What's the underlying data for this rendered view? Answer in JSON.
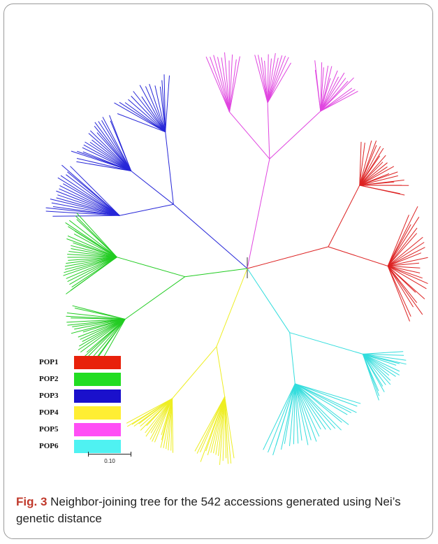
{
  "figure": {
    "caption_label": "Fig. 3",
    "caption_text": " Neighbor-joining tree for the 542 accessions generated using Nei’s genetic distance"
  },
  "legend": {
    "items": [
      {
        "label": "POP1",
        "color": "#e8210b"
      },
      {
        "label": "POP2",
        "color": "#22dd22"
      },
      {
        "label": "POP3",
        "color": "#1a10cc"
      },
      {
        "label": "POP4",
        "color": "#ffee33"
      },
      {
        "label": "POP5",
        "color": "#ff4ef5"
      },
      {
        "label": "POP6",
        "color": "#4ff2f2"
      }
    ]
  },
  "scale_bar": {
    "label": "0.10"
  },
  "tree": {
    "root_color": "#333333",
    "clades": [
      {
        "population": "POP3",
        "color": "#2727d8"
      },
      {
        "population": "POP5",
        "color": "#e044e0"
      },
      {
        "population": "POP1",
        "color": "#dd2222"
      },
      {
        "population": "POP6",
        "color": "#33dddd"
      },
      {
        "population": "POP4",
        "color": "#eeee22"
      },
      {
        "population": "POP2",
        "color": "#22cc22"
      }
    ]
  }
}
